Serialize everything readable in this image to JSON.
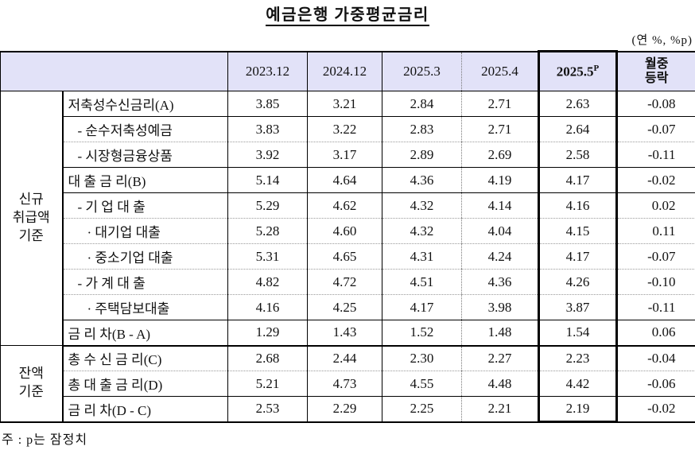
{
  "title": "예금은행 가중평균금리",
  "unit_note": "(연 %, %p)",
  "footnote": "주 : p는 잠정치",
  "colors": {
    "header_bg": "#E2E2F8",
    "border": "#000000",
    "highlight_box": "#000000"
  },
  "table": {
    "corner_label": "",
    "columns": [
      "2023.12",
      "2024.12",
      "2025.3",
      "2025.4",
      "2025.5",
      "월중\n등락"
    ],
    "preliminary_mark": "P",
    "groups": [
      {
        "label": "신규\n취급액\n기준",
        "rows": [
          {
            "label": "저축성수신금리(A)",
            "indent": 0,
            "values": [
              "3.85",
              "3.21",
              "2.84",
              "2.71",
              "2.63",
              "-0.08"
            ],
            "divider_below": "solid"
          },
          {
            "label": "- 순수저축성예금",
            "indent": 1,
            "values": [
              "3.83",
              "3.22",
              "2.83",
              "2.71",
              "2.64",
              "-0.07"
            ],
            "divider_below": "dotted"
          },
          {
            "label": "- 시장형금융상품",
            "indent": 1,
            "values": [
              "3.92",
              "3.17",
              "2.89",
              "2.69",
              "2.58",
              "-0.11"
            ],
            "divider_below": "solid"
          },
          {
            "label": "대 출 금 리(B)",
            "indent": 0,
            "values": [
              "5.14",
              "4.64",
              "4.36",
              "4.19",
              "4.17",
              "-0.02"
            ],
            "divider_below": "solid"
          },
          {
            "label": "- 기 업 대 출",
            "indent": 1,
            "values": [
              "5.29",
              "4.62",
              "4.32",
              "4.14",
              "4.16",
              "0.02"
            ],
            "divider_below": "dotted"
          },
          {
            "label": "· 대기업 대출",
            "indent": 2,
            "values": [
              "5.28",
              "4.60",
              "4.32",
              "4.04",
              "4.15",
              "0.11"
            ],
            "divider_below": "dotted"
          },
          {
            "label": "· 중소기업 대출",
            "indent": 2,
            "values": [
              "5.31",
              "4.65",
              "4.31",
              "4.24",
              "4.17",
              "-0.07"
            ],
            "divider_below": "dotted"
          },
          {
            "label": "- 가 계 대 출",
            "indent": 1,
            "values": [
              "4.82",
              "4.72",
              "4.51",
              "4.36",
              "4.26",
              "-0.10"
            ],
            "divider_below": "dotted"
          },
          {
            "label": "· 주택담보대출",
            "indent": 2,
            "values": [
              "4.16",
              "4.25",
              "4.17",
              "3.98",
              "3.87",
              "-0.11"
            ],
            "divider_below": "solid"
          },
          {
            "label": "금 리 차(B - A)",
            "indent": 0,
            "values": [
              "1.29",
              "1.43",
              "1.52",
              "1.48",
              "1.54",
              "0.06"
            ],
            "divider_below": "group"
          }
        ]
      },
      {
        "label": "잔액\n기준",
        "rows": [
          {
            "label": "총 수 신 금 리(C)",
            "indent": 0,
            "values": [
              "2.68",
              "2.44",
              "2.30",
              "2.27",
              "2.23",
              "-0.04"
            ],
            "divider_below": "dotted"
          },
          {
            "label": "총 대 출 금 리(D)",
            "indent": 0,
            "values": [
              "5.21",
              "4.73",
              "4.55",
              "4.48",
              "4.42",
              "-0.06"
            ],
            "divider_below": "solid"
          },
          {
            "label": "금 리 차(D - C)",
            "indent": 0,
            "values": [
              "2.53",
              "2.29",
              "2.25",
              "2.21",
              "2.19",
              "-0.02"
            ],
            "divider_below": "end"
          }
        ]
      }
    ]
  }
}
